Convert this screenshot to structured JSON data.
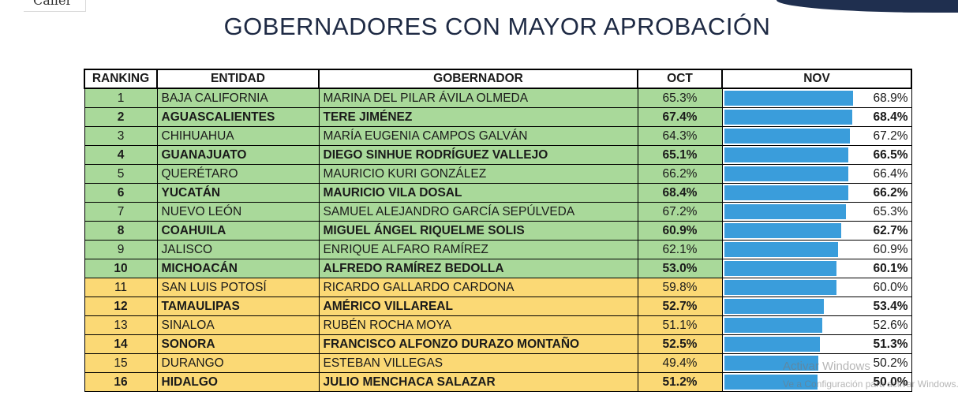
{
  "logo": {
    "text": "Caller"
  },
  "chart_data": {
    "type": "table",
    "title": "GOBERNADORES CON MAYOR APROBACIÓN",
    "columns": [
      "RANKING",
      "ENTIDAD",
      "GOBERNADOR",
      "OCT",
      "NOV"
    ],
    "nov_axis_max": 68.9,
    "rows": [
      {
        "rank": "1",
        "entidad": "BAJA CALIFORNIA",
        "gobernador": "MARINA DEL PILAR ÁVILA OLMEDA",
        "oct": "65.3%",
        "nov": "68.9%",
        "nov_value": 68.9,
        "group": "green",
        "bold": false
      },
      {
        "rank": "2",
        "entidad": "AGUASCALIENTES",
        "gobernador": "TERE JIMÉNEZ",
        "oct": "67.4%",
        "nov": "68.4%",
        "nov_value": 68.4,
        "group": "green",
        "bold": true
      },
      {
        "rank": "3",
        "entidad": "CHIHUAHUA",
        "gobernador": "MARÍA EUGENIA CAMPOS GALVÁN",
        "oct": "64.3%",
        "nov": "67.2%",
        "nov_value": 67.2,
        "group": "green",
        "bold": false
      },
      {
        "rank": "4",
        "entidad": "GUANAJUATO",
        "gobernador": "DIEGO SINHUE RODRÍGUEZ VALLEJO",
        "oct": "65.1%",
        "nov": "66.5%",
        "nov_value": 66.5,
        "group": "green",
        "bold": true
      },
      {
        "rank": "5",
        "entidad": "QUERÉTARO",
        "gobernador": "MAURICIO KURI GONZÁLEZ",
        "oct": "66.2%",
        "nov": "66.4%",
        "nov_value": 66.4,
        "group": "green",
        "bold": false
      },
      {
        "rank": "6",
        "entidad": "YUCATÁN",
        "gobernador": "MAURICIO VILA DOSAL",
        "oct": "68.4%",
        "nov": "66.2%",
        "nov_value": 66.2,
        "group": "green",
        "bold": true
      },
      {
        "rank": "7",
        "entidad": "NUEVO LEÓN",
        "gobernador": "SAMUEL ALEJANDRO GARCÍA SEPÚLVEDA",
        "oct": "67.2%",
        "nov": "65.3%",
        "nov_value": 65.3,
        "group": "green",
        "bold": false
      },
      {
        "rank": "8",
        "entidad": "COAHUILA",
        "gobernador": "MIGUEL ÁNGEL RIQUELME SOLIS",
        "oct": "60.9%",
        "nov": "62.7%",
        "nov_value": 62.7,
        "group": "green",
        "bold": true
      },
      {
        "rank": "9",
        "entidad": "JALISCO",
        "gobernador": "ENRIQUE ALFARO RAMÍREZ",
        "oct": "62.1%",
        "nov": "60.9%",
        "nov_value": 60.9,
        "group": "green",
        "bold": false
      },
      {
        "rank": "10",
        "entidad": "MICHOACÁN",
        "gobernador": "ALFREDO RAMÍREZ BEDOLLA",
        "oct": "53.0%",
        "nov": "60.1%",
        "nov_value": 60.1,
        "group": "green",
        "bold": true
      },
      {
        "rank": "11",
        "entidad": "SAN LUIS POTOSÍ",
        "gobernador": "RICARDO GALLARDO CARDONA",
        "oct": "59.8%",
        "nov": "60.0%",
        "nov_value": 60.0,
        "group": "yellow",
        "bold": false
      },
      {
        "rank": "12",
        "entidad": "TAMAULIPAS",
        "gobernador": "AMÉRICO VILLAREAL",
        "oct": "52.7%",
        "nov": "53.4%",
        "nov_value": 53.4,
        "group": "yellow",
        "bold": true
      },
      {
        "rank": "13",
        "entidad": "SINALOA",
        "gobernador": "RUBÉN ROCHA MOYA",
        "oct": "51.1%",
        "nov": "52.6%",
        "nov_value": 52.6,
        "group": "yellow",
        "bold": false
      },
      {
        "rank": "14",
        "entidad": "SONORA",
        "gobernador": "FRANCISCO ALFONZO DURAZO MONTAÑO",
        "oct": "52.5%",
        "nov": "51.3%",
        "nov_value": 51.3,
        "group": "yellow",
        "bold": true
      },
      {
        "rank": "15",
        "entidad": "DURANGO",
        "gobernador": "ESTEBAN VILLEGAS",
        "oct": "49.4%",
        "nov": "50.2%",
        "nov_value": 50.2,
        "group": "yellow",
        "bold": false
      },
      {
        "rank": "16",
        "entidad": "HIDALGO",
        "gobernador": "JULIO MENCHACA SALAZAR",
        "oct": "51.2%",
        "nov": "50.0%",
        "nov_value": 50.0,
        "group": "yellow",
        "bold": true
      }
    ]
  },
  "colors": {
    "green_row": "#a9d99a",
    "yellow_row": "#fbd975",
    "bar": "#3a9ddb",
    "title": "#1e2a44"
  },
  "watermark": {
    "line1": "Activar Windows",
    "line2": "Ve a Configuración para activar Windows."
  }
}
